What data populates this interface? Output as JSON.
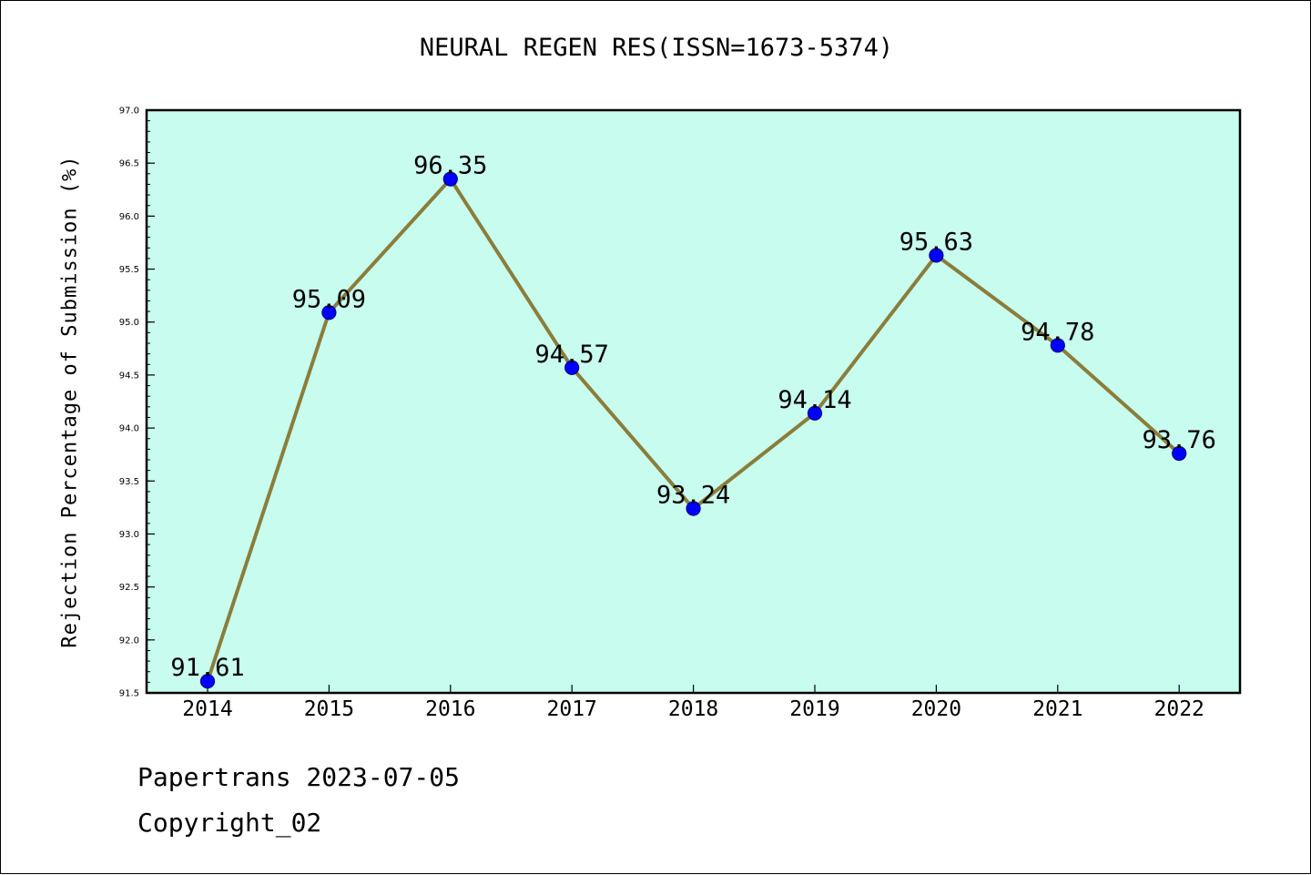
{
  "chart_data": {
    "type": "line",
    "title": "NEURAL REGEN RES(ISSN=1673-5374)",
    "xlabel": "",
    "ylabel": "Rejection Percentage of Submission (%)",
    "categories": [
      "2014",
      "2015",
      "2016",
      "2017",
      "2018",
      "2019",
      "2020",
      "2021",
      "2022"
    ],
    "values": [
      91.61,
      95.09,
      96.35,
      94.57,
      93.24,
      94.14,
      95.63,
      94.78,
      93.76
    ],
    "data_labels": [
      "91.61",
      "95.09",
      "96.35",
      "94.57",
      "93.24",
      "94.14",
      "95.63",
      "94.78",
      "93.76"
    ],
    "ylim": [
      91.5,
      97.0
    ],
    "yticks": [
      "91.5",
      "92.0",
      "92.5",
      "93.0",
      "93.5",
      "94.0",
      "94.5",
      "95.0",
      "95.5",
      "96.0",
      "96.5",
      "97.0"
    ],
    "ytick_values": [
      91.5,
      92.0,
      92.5,
      93.0,
      93.5,
      94.0,
      94.5,
      95.0,
      95.5,
      96.0,
      96.5,
      97.0
    ],
    "grid": false,
    "legend": "none",
    "colors": {
      "plot_background": "#c7fcee",
      "line": "#8b7d3a",
      "marker_fill": "#0000ff",
      "marker_edge": "#00008b"
    }
  },
  "footer": {
    "line1": "Papertrans 2023-07-05",
    "line2": "Copyright_02"
  }
}
